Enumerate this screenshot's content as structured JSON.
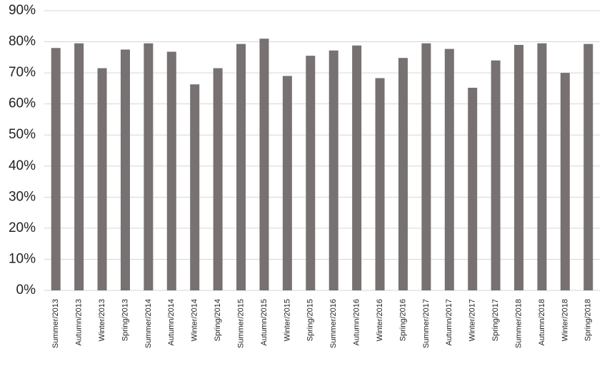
{
  "chart_data": {
    "type": "bar",
    "categories": [
      "Summer/2013",
      "Autumn/2013",
      "Winter/2013",
      "Spring/2013",
      "Summer/2014",
      "Autumn/2014",
      "Winter/2014",
      "Spring/2014",
      "Summer/2015",
      "Autumn/2015",
      "Winter/2015",
      "Spring/2015",
      "Summer/2016",
      "Autumn/2016",
      "Winter/2016",
      "Spring/2016",
      "Summer/2017",
      "Autumn/2017",
      "Winter/2017",
      "Spring/2017",
      "Summer/2018",
      "Autumn/2018",
      "Winter/2018",
      "Spring/2018"
    ],
    "values": [
      78,
      79.5,
      71.5,
      77.5,
      79.5,
      76.8,
      66.3,
      71.5,
      79.3,
      81,
      69,
      75.5,
      77.2,
      78.8,
      68.3,
      74.8,
      79.5,
      77.7,
      65.2,
      74,
      79,
      79.5,
      70,
      79.3
    ],
    "color": "#777171",
    "ylim": [
      0,
      90
    ],
    "yticks": [
      {
        "value": 0,
        "label": "0%"
      },
      {
        "value": 10,
        "label": "10%"
      },
      {
        "value": 20,
        "label": "20%"
      },
      {
        "value": 30,
        "label": "30%"
      },
      {
        "value": 40,
        "label": "40%"
      },
      {
        "value": 50,
        "label": "50%"
      },
      {
        "value": 60,
        "label": "60%"
      },
      {
        "value": 70,
        "label": "70%"
      },
      {
        "value": 80,
        "label": "80%"
      },
      {
        "value": 90,
        "label": "90%"
      }
    ],
    "grid": true
  }
}
